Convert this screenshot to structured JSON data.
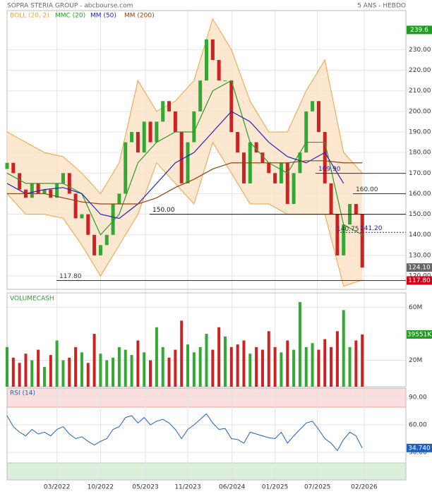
{
  "header": {
    "title": "SOPRA STERIA GROUP - abcbourse.com",
    "period": "5 ANS - HEBDO"
  },
  "chart_data": [
    {
      "type": "candlestick",
      "open": [
        172,
        175,
        170,
        162,
        158,
        165,
        160,
        162,
        158,
        165,
        170,
        160,
        148,
        150,
        140,
        130,
        135,
        140,
        155,
        160,
        185,
        190,
        180,
        195,
        185,
        195,
        205,
        200,
        190,
        165,
        185,
        200,
        215,
        235,
        225,
        215,
        215,
        190,
        180,
        165,
        185,
        180,
        175,
        170,
        165,
        175,
        155,
        170,
        180,
        200,
        205,
        190,
        165,
        150,
        130,
        145,
        155,
        150
      ],
      "close": [
        175,
        170,
        162,
        158,
        165,
        160,
        162,
        158,
        165,
        170,
        160,
        148,
        150,
        140,
        130,
        135,
        140,
        155,
        160,
        185,
        190,
        180,
        195,
        185,
        195,
        205,
        200,
        190,
        165,
        185,
        200,
        215,
        235,
        225,
        215,
        215,
        190,
        180,
        165,
        185,
        180,
        175,
        170,
        165,
        175,
        155,
        170,
        180,
        200,
        205,
        190,
        165,
        150,
        130,
        145,
        155,
        150,
        124.1
      ],
      "up_color": "#33a833",
      "down_color": "#cc2222",
      "xlim": [
        0,
        64
      ],
      "xticks": [
        {
          "value": 8,
          "label": "03/2022"
        },
        {
          "value": 15,
          "label": "10/2022"
        },
        {
          "value": 22.2,
          "label": "05/2023"
        },
        {
          "value": 29,
          "label": "11/2023"
        },
        {
          "value": 36.1,
          "label": "06/2024"
        },
        {
          "value": 43,
          "label": "01/2025"
        },
        {
          "value": 49.8,
          "label": "07/2025"
        },
        {
          "value": 57.3,
          "label": "02/2026"
        }
      ],
      "ylim": [
        113.5,
        249
      ],
      "yticks": [
        {
          "value": 120,
          "label": "120.00"
        },
        {
          "value": 130,
          "label": "130.00"
        },
        {
          "value": 140,
          "label": "140.00"
        },
        {
          "value": 150,
          "label": "150.00"
        },
        {
          "value": 160,
          "label": "160.00"
        },
        {
          "value": 170,
          "label": "170.00"
        },
        {
          "value": 180,
          "label": "180.00"
        },
        {
          "value": 190,
          "label": "190.00"
        },
        {
          "value": 200,
          "label": "200.00"
        },
        {
          "value": 210,
          "label": "210.00"
        },
        {
          "value": 220,
          "label": "220.00"
        },
        {
          "value": 230,
          "label": "230.00"
        }
      ],
      "overlays": [
        {
          "name": "BOLL (20, 2)",
          "color": "#f0a040",
          "x": [
            0,
            3,
            6,
            9,
            12,
            15,
            18,
            21,
            24,
            27,
            30,
            33,
            36,
            39,
            42,
            45,
            48,
            51,
            54,
            57
          ],
          "upper": [
            190,
            185,
            180,
            178,
            170,
            160,
            175,
            215,
            200,
            205,
            215,
            245,
            230,
            205,
            190,
            190,
            210,
            225,
            180,
            170
          ],
          "lower": [
            160,
            150,
            150,
            148,
            135,
            120,
            135,
            150,
            175,
            165,
            155,
            185,
            170,
            155,
            155,
            150,
            150,
            150,
            115,
            118
          ]
        },
        {
          "name": "MMC (20)",
          "color": "#2a9d2a",
          "x": [
            0,
            3,
            6,
            9,
            12,
            15,
            18,
            21,
            24,
            27,
            30,
            33,
            36,
            39,
            42,
            45,
            48,
            51,
            54,
            57
          ],
          "values": [
            170,
            165,
            165,
            165,
            160,
            140,
            150,
            175,
            185,
            190,
            190,
            210,
            215,
            185,
            175,
            170,
            185,
            185,
            145,
            140
          ]
        },
        {
          "name": "MM (50)",
          "color": "#2222c0",
          "x": [
            0,
            3,
            6,
            9,
            12,
            15,
            18,
            21,
            24,
            27,
            30,
            33,
            36,
            39,
            42,
            45,
            48,
            51,
            54
          ],
          "values": [
            165,
            160,
            162,
            163,
            160,
            150,
            148,
            155,
            165,
            175,
            180,
            190,
            200,
            195,
            185,
            178,
            175,
            180,
            165
          ]
        },
        {
          "name": "MM (200)",
          "color": "#8b4513",
          "x": [
            0,
            3,
            6,
            9,
            12,
            15,
            18,
            21,
            24,
            27,
            30,
            33,
            36,
            39,
            42,
            45,
            48,
            51,
            54,
            57
          ],
          "values": [
            160,
            160,
            160,
            158,
            156,
            155,
            155,
            155,
            158,
            163,
            167,
            172,
            175,
            175,
            175,
            175,
            176,
            176,
            175,
            175
          ]
        }
      ],
      "levels": [
        {
          "value": 117.8,
          "label": "117.80",
          "color": "#333333",
          "dashed": false
        },
        {
          "value": 150,
          "label": "150.00",
          "color": "#111111",
          "dashed": false
        },
        {
          "value": 160,
          "label": "160.00",
          "color": "#333333",
          "dashed": false
        },
        {
          "value": 169.9,
          "label": "169.90",
          "color": "#2222aa",
          "dashed": false
        },
        {
          "value": 141.2,
          "label": "141.20",
          "color": "#2222aa",
          "dashed": true
        }
      ],
      "annotations": [
        {
          "value": 140.75,
          "label": "140.75"
        }
      ],
      "badges": [
        {
          "value": 239.6,
          "label": "239.6",
          "color": "#1e9e1e"
        },
        {
          "value": 124.1,
          "label": "124.10",
          "color": "#666666"
        },
        {
          "value": 117.8,
          "label": "117.80",
          "color": "#d0021b"
        }
      ]
    },
    {
      "type": "bar",
      "title": "VOLUMECASH",
      "values": [
        30,
        22,
        18,
        25,
        20,
        28,
        15,
        24,
        35,
        20,
        22,
        30,
        26,
        18,
        40,
        25,
        20,
        22,
        30,
        28,
        24,
        35,
        26,
        20,
        45,
        30,
        22,
        28,
        50,
        32,
        26,
        30,
        40,
        28,
        45,
        38,
        30,
        32,
        35,
        25,
        30,
        28,
        42,
        30,
        26,
        35,
        28,
        64,
        30,
        33,
        28,
        36,
        30,
        42,
        58,
        30,
        35,
        39.551
      ],
      "ylim": [
        0,
        71
      ],
      "yticks": [
        {
          "value": 20,
          "label": "20M"
        },
        {
          "value": 60,
          "label": "60M"
        }
      ],
      "badges": [
        {
          "value": 39.551,
          "label": "39551K",
          "color": "#1e9e1e"
        }
      ]
    },
    {
      "type": "line",
      "title": "RSI (14)",
      "color": "#1f5fbf",
      "values": [
        70,
        58,
        52,
        48,
        55,
        50,
        52,
        48,
        55,
        58,
        50,
        45,
        47,
        42,
        38,
        42,
        45,
        55,
        58,
        68,
        70,
        62,
        68,
        60,
        64,
        66,
        62,
        55,
        45,
        55,
        60,
        66,
        72,
        62,
        55,
        56,
        45,
        44,
        40,
        52,
        50,
        48,
        46,
        45,
        52,
        40,
        48,
        55,
        62,
        64,
        55,
        45,
        40,
        32,
        44,
        52,
        48,
        34.74
      ],
      "ylim": [
        0,
        100
      ],
      "yticks": [
        {
          "value": 30,
          "label": "30.00"
        },
        {
          "value": 60,
          "label": "60.00"
        },
        {
          "value": 90,
          "label": "90.00"
        }
      ],
      "badges": [
        {
          "value": 34.74,
          "label": "34.740",
          "color": "#1f5fbf"
        }
      ]
    }
  ]
}
